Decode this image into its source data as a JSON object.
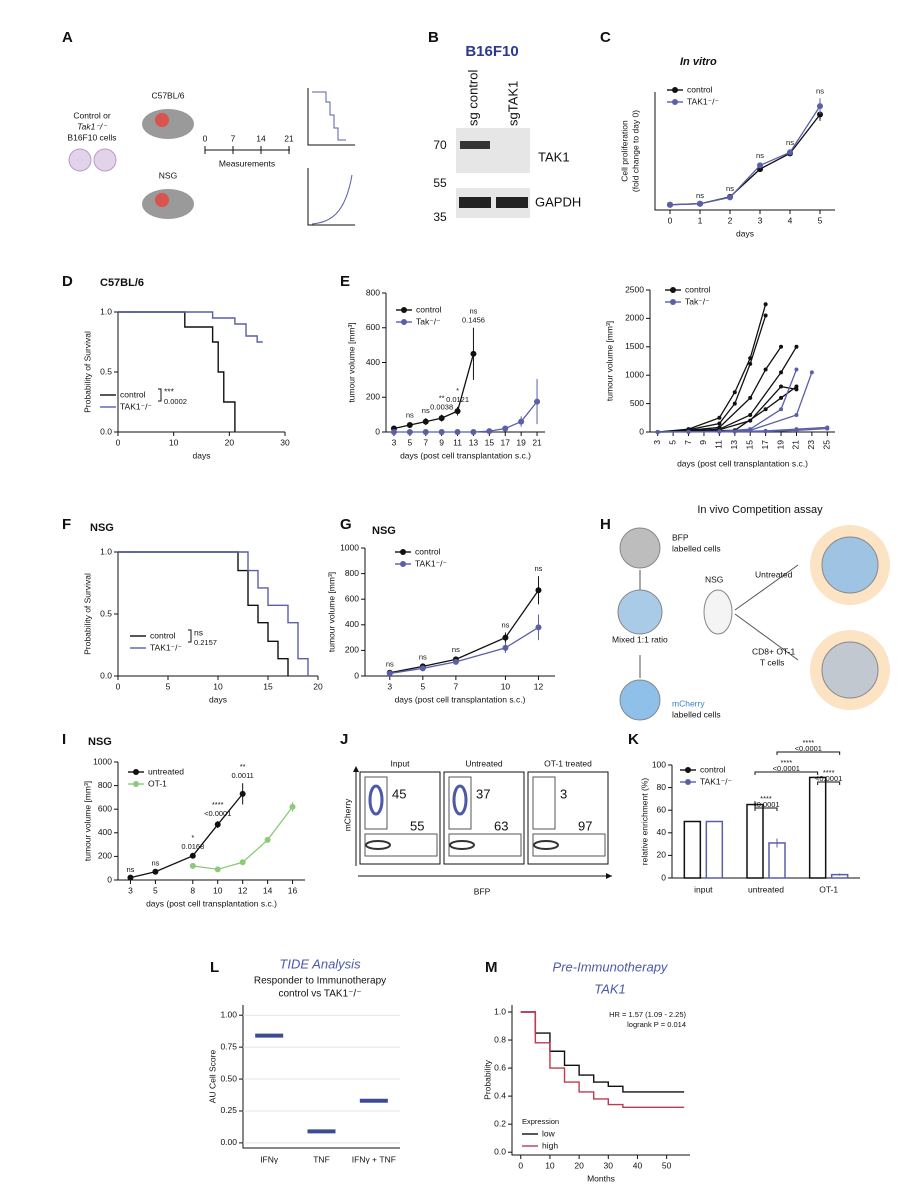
{
  "panel_labels": [
    "A",
    "B",
    "C",
    "D",
    "E",
    "F",
    "G",
    "H",
    "I",
    "J",
    "K",
    "L",
    "M"
  ],
  "diagram_a": {
    "cells": [
      "Control or",
      "Tak1⁻/⁻",
      "B16F10 cells"
    ],
    "strain_1": "C57BL/6",
    "strain_2": "NSG",
    "timeline": [
      "0",
      "7",
      "14",
      "21"
    ],
    "timeline_label": "Measurements"
  },
  "blot_b": {
    "title": "B16F10",
    "lanes": [
      "sg control",
      "sgTAK1"
    ],
    "markers": [
      "70",
      "55",
      "35"
    ],
    "proteins": [
      "TAK1",
      "GAPDH"
    ]
  },
  "diagram_h": {
    "title": "In vivo Competition assay",
    "bfp": [
      "BFP",
      "labelled cells"
    ],
    "mix": "Mixed 1:1 ratio",
    "mcherry": [
      "mCherry",
      "labelled cells"
    ],
    "host": "NSG",
    "untreated": "Untreated",
    "treated": [
      "CD8+ OT-1",
      "T cells"
    ]
  },
  "flow_j": {
    "panels": [
      {
        "title": "Input",
        "upper": "45",
        "lower": "55"
      },
      {
        "title": "Untreated",
        "upper": "37",
        "lower": "63"
      },
      {
        "title": "OT-1 treated",
        "upper": "3",
        "lower": "97"
      }
    ],
    "ylabel": "mCherry",
    "xlabel": "BFP"
  },
  "chart_data": [
    {
      "type": "line",
      "title": "In vitro",
      "ylabel": [
        "Cell proliferation",
        "(fold change to day 0)"
      ],
      "xlabel": "days",
      "x": [
        0,
        1,
        2,
        3,
        4,
        5
      ],
      "xlim": [
        -0.5,
        5.5
      ],
      "xticks": [
        0,
        1,
        2,
        3,
        4,
        5
      ],
      "ylim": [
        -10,
        215
      ],
      "significance": [
        null,
        "ns",
        "ns",
        "ns",
        "ns",
        "ns"
      ],
      "series": [
        {
          "name": "control",
          "color": "#111111",
          "values": [
            0,
            2,
            15,
            68,
            98,
            172
          ],
          "errors": [
            0,
            1,
            2,
            5,
            5,
            12
          ]
        },
        {
          "name": "TAK1⁻/⁻",
          "color": "#5a5fa8",
          "values": [
            0,
            2,
            14,
            75,
            100,
            188
          ],
          "errors": [
            0,
            1,
            2,
            5,
            4,
            15
          ]
        }
      ]
    },
    {
      "type": "survival",
      "title": "C57BL/6",
      "ylabel": "Probability of Survival",
      "xlabel": "days",
      "xlim": [
        0,
        30
      ],
      "xticks": [
        0,
        10,
        20,
        30
      ],
      "ylim": [
        0,
        1
      ],
      "yticks": [
        {
          "value": 0,
          "label": "0.0"
        },
        {
          "value": 0.5,
          "label": "0.5"
        },
        {
          "value": 1,
          "label": "1.0"
        }
      ],
      "stat": "***",
      "p": "0.0002",
      "series": [
        {
          "name": "control",
          "color": "#111111",
          "x": [
            0,
            12,
            17,
            18,
            19,
            21
          ],
          "values": [
            1,
            0.875,
            0.75,
            0.5,
            0.25,
            0
          ]
        },
        {
          "name": "TAK1⁻/⁻",
          "color": "#5a5fa8",
          "x": [
            0,
            17,
            21,
            23,
            25,
            26
          ],
          "values": [
            1,
            0.95,
            0.9,
            0.8,
            0.75,
            0.75
          ]
        }
      ]
    },
    {
      "type": "line",
      "ylabel": "tumour volume [mm³]",
      "xlabel": "days (post cell transplantation s.c.)",
      "xlim": [
        2,
        22
      ],
      "xticks": [
        3,
        5,
        7,
        9,
        11,
        13,
        15,
        17,
        19,
        21
      ],
      "ylim": [
        0,
        800
      ],
      "yticks": [
        0,
        200,
        400,
        600,
        800
      ],
      "significance": [
        null,
        "ns",
        "ns",
        "**",
        "*",
        "ns"
      ],
      "p_values": [
        null,
        null,
        null,
        "0.0038",
        "0.0121",
        "0.1456"
      ],
      "series": [
        {
          "name": "control",
          "color": "#111111",
          "x": [
            3,
            5,
            7,
            9,
            11,
            13
          ],
          "values": [
            20,
            40,
            60,
            80,
            120,
            450
          ],
          "errors": [
            5,
            15,
            20,
            20,
            25,
            150
          ]
        },
        {
          "name": "Tak⁻/⁻",
          "color": "#5a5fa8",
          "x": [
            3,
            5,
            7,
            9,
            11,
            13,
            15,
            17,
            19,
            21
          ],
          "values": [
            0,
            0,
            0,
            0,
            0,
            0,
            5,
            20,
            60,
            175
          ],
          "errors": [
            0,
            0,
            0,
            0,
            0,
            0,
            3,
            10,
            30,
            130
          ]
        }
      ]
    },
    {
      "type": "line",
      "ylabel": "tumour volume [mm³]",
      "xlabel": "days (post cell transplantation s.c.)",
      "xlim": [
        2,
        26
      ],
      "xticks": [
        3,
        5,
        7,
        9,
        11,
        13,
        15,
        17,
        19,
        21,
        23,
        25
      ],
      "ylim": [
        0,
        2500
      ],
      "yticks": [
        0,
        500,
        1000,
        1500,
        2000,
        2500
      ],
      "groups": [
        {
          "name": "control",
          "color": "#111111"
        },
        {
          "name": "Tak⁻/⁻",
          "color": "#5a5fa8"
        }
      ],
      "series": [
        {
          "group": 0,
          "x": [
            3,
            7,
            11,
            13,
            15,
            17
          ],
          "values": [
            0,
            50,
            250,
            700,
            1300,
            2250
          ]
        },
        {
          "group": 0,
          "x": [
            3,
            7,
            11,
            13,
            15,
            17
          ],
          "values": [
            0,
            40,
            150,
            500,
            1200,
            2050
          ]
        },
        {
          "group": 0,
          "x": [
            3,
            7,
            11,
            15,
            17,
            19
          ],
          "values": [
            0,
            30,
            80,
            600,
            1100,
            1500
          ]
        },
        {
          "group": 0,
          "x": [
            3,
            7,
            11,
            15,
            19,
            21
          ],
          "values": [
            0,
            20,
            50,
            300,
            1050,
            1500
          ]
        },
        {
          "group": 0,
          "x": [
            3,
            7,
            11,
            15,
            19,
            21
          ],
          "values": [
            0,
            20,
            40,
            200,
            800,
            750
          ]
        },
        {
          "group": 0,
          "x": [
            3,
            7,
            13,
            17,
            19,
            21
          ],
          "values": [
            0,
            10,
            30,
            400,
            600,
            800
          ]
        },
        {
          "group": 1,
          "x": [
            3,
            7,
            11,
            15,
            19,
            21
          ],
          "values": [
            0,
            5,
            10,
            50,
            400,
            1100
          ]
        },
        {
          "group": 1,
          "x": [
            3,
            7,
            11,
            15,
            21,
            23
          ],
          "values": [
            0,
            5,
            10,
            30,
            300,
            1050
          ]
        },
        {
          "group": 1,
          "x": [
            3,
            7,
            11,
            17,
            21,
            25
          ],
          "values": [
            0,
            5,
            5,
            20,
            50,
            80
          ]
        },
        {
          "group": 1,
          "x": [
            3,
            7,
            13,
            17,
            21,
            25
          ],
          "values": [
            0,
            0,
            5,
            10,
            30,
            60
          ]
        }
      ]
    },
    {
      "type": "survival",
      "title": "NSG",
      "ylabel": "Probability of Survival",
      "xlabel": "days",
      "xlim": [
        0,
        20
      ],
      "xticks": [
        0,
        5,
        10,
        15,
        20
      ],
      "ylim": [
        0,
        1
      ],
      "yticks": [
        {
          "value": 0,
          "label": "0.0"
        },
        {
          "value": 0.5,
          "label": "0.5"
        },
        {
          "value": 1,
          "label": "1.0"
        }
      ],
      "stat": "ns",
      "p": "0.2157",
      "series": [
        {
          "name": "control",
          "color": "#111111",
          "x": [
            0,
            12,
            13,
            14,
            15,
            16,
            17
          ],
          "values": [
            1,
            0.85,
            0.57,
            0.43,
            0.28,
            0.14,
            0
          ]
        },
        {
          "name": "TAK1⁻/⁻",
          "color": "#5a5fa8",
          "x": [
            0,
            13,
            14,
            15,
            17,
            18,
            19
          ],
          "values": [
            1,
            0.85,
            0.71,
            0.57,
            0.43,
            0.14,
            0
          ]
        }
      ]
    },
    {
      "type": "line",
      "title": "NSG",
      "ylabel": "tumour volume [mm³]",
      "xlabel": "days (post cell transplantation s.c.)",
      "x": [
        3,
        5,
        7,
        10,
        12
      ],
      "xlim": [
        1.5,
        13
      ],
      "xticks": [
        3,
        5,
        7,
        10,
        12
      ],
      "ylim": [
        0,
        1000
      ],
      "yticks": [
        0,
        200,
        400,
        600,
        800,
        1000
      ],
      "significance": [
        "ns",
        "ns",
        "ns",
        "ns",
        "ns"
      ],
      "series": [
        {
          "name": "control",
          "color": "#111111",
          "values": [
            25,
            75,
            130,
            300,
            670
          ],
          "errors": [
            10,
            15,
            20,
            40,
            110
          ]
        },
        {
          "name": "TAK1⁻/⁻",
          "color": "#5a5fa8",
          "values": [
            20,
            60,
            110,
            220,
            380
          ],
          "errors": [
            5,
            10,
            15,
            40,
            100
          ]
        }
      ]
    },
    {
      "type": "line",
      "title": "NSG",
      "ylabel": "tumour volume [mm³]",
      "xlabel": "days (post cell transplantation s.c.)",
      "xlim": [
        2,
        17
      ],
      "xticks": [
        3,
        5,
        8,
        10,
        12,
        14,
        16
      ],
      "ylim": [
        0,
        1000
      ],
      "yticks": [
        0,
        200,
        400,
        600,
        800,
        1000
      ],
      "significance": [
        "ns",
        "ns",
        "*",
        "****",
        "**"
      ],
      "p_values": [
        null,
        null,
        "0.0168",
        "<0.0001",
        "0.0011"
      ],
      "series": [
        {
          "name": "untreated",
          "color": "#111111",
          "x": [
            3,
            5,
            8,
            10,
            12
          ],
          "values": [
            20,
            70,
            205,
            470,
            730
          ],
          "errors": [
            5,
            10,
            15,
            30,
            90
          ]
        },
        {
          "name": "OT-1",
          "color": "#8cc97a",
          "x": [
            8,
            10,
            12,
            14,
            16
          ],
          "values": [
            120,
            90,
            150,
            340,
            620
          ],
          "errors": [
            10,
            10,
            15,
            25,
            40
          ]
        }
      ]
    },
    {
      "type": "bar",
      "ylabel": "relative enrichment (%)",
      "categories": [
        "input",
        "untreated",
        "OT-1"
      ],
      "ylim": [
        0,
        100
      ],
      "yticks": [
        0,
        20,
        40,
        60,
        80,
        100
      ],
      "comparisons": [
        {
          "stars": "****",
          "p": "<0.0001"
        },
        {
          "stars": "****",
          "p": "<0.0001"
        },
        {
          "stars": "****",
          "p": "<0.0001"
        },
        {
          "stars": "****",
          "p": "<0.0001"
        }
      ],
      "series": [
        {
          "name": "control",
          "color": "#111111",
          "values": [
            50,
            65,
            89
          ],
          "errors": [
            0,
            3,
            1
          ]
        },
        {
          "name": "TAK1⁻/⁻",
          "color": "#5a5fa8",
          "values": [
            50,
            31,
            3
          ],
          "errors": [
            0,
            4,
            1
          ]
        }
      ]
    },
    {
      "type": "dot",
      "title": "TIDE Analysis",
      "subtitle": [
        "Responder to Immunotherapy",
        "control vs TAK1⁻/⁻"
      ],
      "ylabel": "AU Cell Score",
      "categories": [
        "IFNγ",
        "TNF",
        "IFNγ + TNF"
      ],
      "values": [
        0.84,
        0.09,
        0.33
      ],
      "color": "#3d4a96",
      "ylim": [
        -0.04,
        1.08
      ],
      "yticks": [
        {
          "value": 0,
          "label": "0.00"
        },
        {
          "value": 0.25,
          "label": "0.25"
        },
        {
          "value": 0.5,
          "label": "0.50"
        },
        {
          "value": 0.75,
          "label": "0.75"
        },
        {
          "value": 1,
          "label": "1.00"
        }
      ],
      "grid": true
    },
    {
      "type": "survival",
      "title": "Pre-Immunotherapy",
      "subtitle": [
        "TAK1"
      ],
      "xlabel": "Months",
      "ylabel": "Probability",
      "xlim": [
        -3,
        58
      ],
      "xticks": [
        0,
        10,
        20,
        30,
        40,
        50
      ],
      "ylim": [
        -0.02,
        1.05
      ],
      "yticks": [
        {
          "value": 0,
          "label": "0.0"
        },
        0.2,
        0.4,
        0.6,
        0.8,
        {
          "value": 1,
          "label": "1.0"
        }
      ],
      "legend_title": "Expression",
      "annotations": [
        "HR = 1.57 (1.09 - 2.25)",
        "logrank P = 0.014"
      ],
      "series": [
        {
          "name": "low",
          "color": "#111111",
          "x": [
            0,
            5,
            10,
            15,
            20,
            25,
            30,
            35,
            40,
            56
          ],
          "values": [
            1,
            0.85,
            0.72,
            0.62,
            0.55,
            0.5,
            0.47,
            0.43,
            0.43,
            0.43
          ]
        },
        {
          "name": "high",
          "color": "#c0394f",
          "x": [
            0,
            5,
            10,
            15,
            20,
            25,
            30,
            35,
            40,
            56
          ],
          "values": [
            1,
            0.78,
            0.6,
            0.5,
            0.43,
            0.38,
            0.34,
            0.32,
            0.32,
            0.32
          ]
        }
      ]
    }
  ]
}
